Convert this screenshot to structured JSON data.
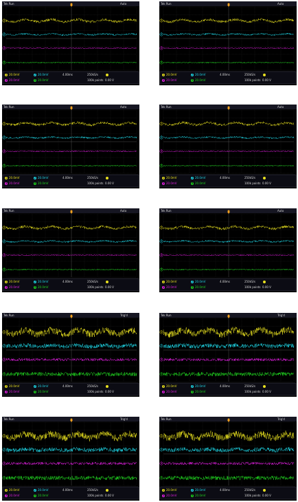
{
  "channel_labels": [
    "1",
    "2",
    "3",
    "4"
  ],
  "scopes": [
    {
      "status": "Tek Run",
      "trigger": "Auto",
      "ch1": "20.0mV",
      "ch2": "20.0mV",
      "ch3": "20.0mV",
      "ch4": "20.0mV",
      "timebase": "4.00ms",
      "sample_rate": "250kS/s",
      "record": "100k points",
      "trigger_level": "0.00 V"
    },
    {
      "status": "Tek Run",
      "trigger": "Auto",
      "ch1": "20.0mV",
      "ch2": "20.0mV",
      "ch3": "20.0mV",
      "ch4": "20.0mV",
      "timebase": "4.00ms",
      "sample_rate": "250kS/s",
      "record": "100k points",
      "trigger_level": "0.00 V"
    },
    {
      "status": "Tek Run",
      "trigger": "Auto",
      "ch1": "20.0mV",
      "ch2": "20.0mV",
      "ch3": "20.0mV",
      "ch4": "20.0mV",
      "timebase": "4.00ms",
      "sample_rate": "250kS/s",
      "record": "100k points",
      "trigger_level": "0.00 V"
    },
    {
      "status": "Tek Run",
      "trigger": "Auto",
      "ch1": "20.0mV",
      "ch2": "20.0mV",
      "ch3": "20.0mV",
      "ch4": "20.0mV",
      "timebase": "4.00ms",
      "sample_rate": "250kS/s",
      "record": "100k points",
      "trigger_level": "0.00 V"
    },
    {
      "status": "Tek Run",
      "trigger": "Auto",
      "ch1": "20.0mV",
      "ch2": "20.0mV",
      "ch3": "20.0mV",
      "ch4": "20.0mV",
      "timebase": "4.00ms",
      "sample_rate": "250kS/s",
      "record": "100k points",
      "trigger_level": "0.00 V"
    },
    {
      "status": "Tek Run",
      "trigger": "Auto",
      "ch1": "20.0mV",
      "ch2": "20.0mV",
      "ch3": "20.0mV",
      "ch4": "20.0mV",
      "timebase": "4.00ms",
      "sample_rate": "250kS/s",
      "record": "100k points",
      "trigger_level": "0.00 V"
    },
    {
      "status": "Tek Run",
      "trigger": "Trig'd",
      "ch1": "20.0mV",
      "ch2": "20.0mV",
      "ch3": "20.0mV",
      "ch4": "20.0mV",
      "timebase": "4.00ms",
      "sample_rate": "250kS/s",
      "record": "100k points",
      "trigger_level": "0.00 V"
    },
    {
      "status": "Tek Run",
      "trigger": "Trig'd",
      "ch1": "20.0mV",
      "ch2": "20.0mV",
      "ch3": "20.0mV",
      "ch4": "20.0mV",
      "timebase": "4.00ms",
      "sample_rate": "250kS/s",
      "record": "100k points",
      "trigger_level": "0.00 V"
    },
    {
      "status": "Tek Run",
      "trigger": "Trig'd",
      "ch1": "20.0mV",
      "ch2": "20.0mV",
      "ch3": "20.0mV",
      "ch4": "20.0mV",
      "timebase": "4.00ms",
      "sample_rate": "250kS/s",
      "record": "100k points",
      "trigger_level": "0.00 V"
    },
    {
      "status": "Tek Run",
      "trigger": "Trig'd",
      "ch1": "20.0mV",
      "ch2": "20.0mV",
      "ch3": "20.0mV",
      "ch4": "20.0mV",
      "timebase": "4.00ms",
      "sample_rate": "250kS/s",
      "record": "100k points",
      "trigger_level": "0.00 V"
    }
  ]
}
